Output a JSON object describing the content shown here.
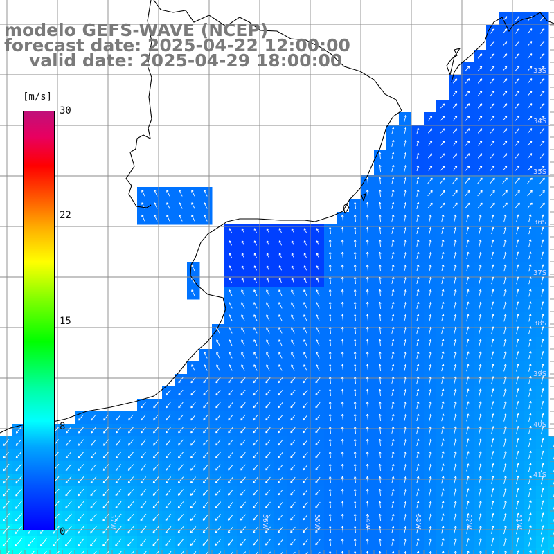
{
  "title": {
    "line1": "modelo GEFS-WAVE (NCEP)",
    "line2": "forecast date: 2025-04-22 12:00:00",
    "line3": "valid date: 2025-04-29 18:00:00"
  },
  "colorbar": {
    "unit": "[m/s]",
    "ticks": [
      "30",
      "22",
      "15",
      "8",
      "0"
    ],
    "colors_bottom_to_top": [
      "#0000ff",
      "#00a8ff",
      "#00ffff",
      "#00ff00",
      "#ffff00",
      "#ff5000",
      "#ff0000",
      "#c0107a"
    ]
  },
  "graticule": {
    "lon_labels": [
      "57W",
      "56W",
      "55W",
      "54W",
      "53W",
      "52W",
      "51W"
    ],
    "lat_labels": [
      "33S",
      "34S",
      "35S",
      "36S",
      "37S",
      "38S",
      "39S",
      "40S",
      "41S"
    ]
  },
  "colors": {
    "land": "#ffffff",
    "grid": "#8a8a8a",
    "coast": "#000000",
    "arrows": "#ffffff",
    "title_text": "#7a7a7a"
  }
}
